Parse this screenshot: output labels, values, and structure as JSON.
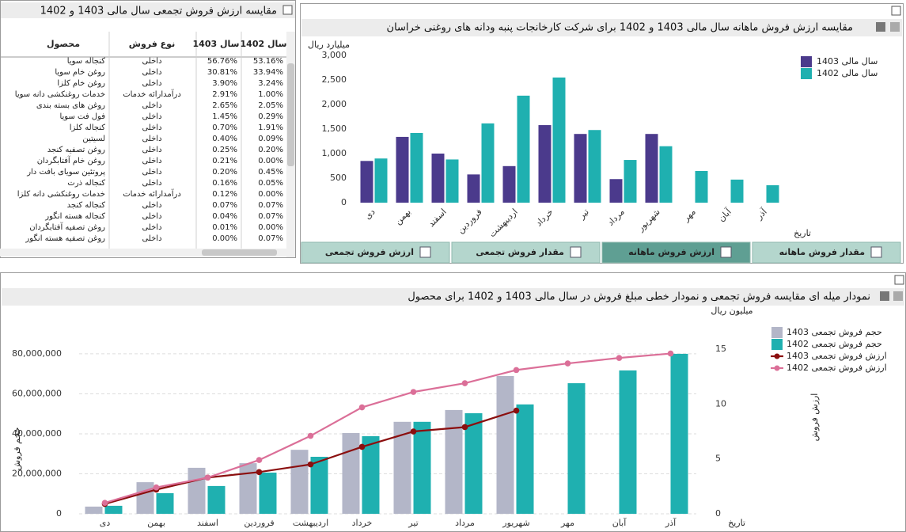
{
  "table": {
    "title": "مقایسه ارزش فروش تجمعی سال مالی 1403 و 1402",
    "columns": [
      "محصول",
      "نوع فروش",
      "سال 1403",
      "سال 1402"
    ],
    "rows": [
      [
        "کنجاله سویا",
        "داخلی",
        "56.76%",
        "53.16%"
      ],
      [
        "روغن خام سویا",
        "داخلی",
        "30.81%",
        "33.94%"
      ],
      [
        "روغن خام کلزا",
        "داخلی",
        "3.90%",
        "3.24%"
      ],
      [
        "خدمات روغنکشی دانه سویا",
        "درآمدارائه خدمات",
        "2.91%",
        "1.00%"
      ],
      [
        "روغن های بسته بندی",
        "داخلی",
        "2.65%",
        "2.05%"
      ],
      [
        "فول فت سویا",
        "داخلی",
        "1.45%",
        "0.29%"
      ],
      [
        "کنجاله کلزا",
        "داخلی",
        "0.70%",
        "1.91%"
      ],
      [
        "لسیتین",
        "داخلی",
        "0.40%",
        "0.09%"
      ],
      [
        "روغن تصفیه کنجد",
        "داخلی",
        "0.25%",
        "0.20%"
      ],
      [
        "روغن خام آفتابگردان",
        "داخلی",
        "0.21%",
        "0.00%"
      ],
      [
        "پروتئین سویای بافت دار",
        "داخلی",
        "0.20%",
        "0.45%"
      ],
      [
        "کنجاله ذرت",
        "داخلی",
        "0.16%",
        "0.05%"
      ],
      [
        "خدمات روغنکشی دانه کلزا",
        "درآمدارائه خدمات",
        "0.12%",
        "0.00%"
      ],
      [
        "کنجاله کنجد",
        "داخلی",
        "0.07%",
        "0.07%"
      ],
      [
        "کنجاله هسته انگور",
        "داخلی",
        "0.04%",
        "0.07%"
      ],
      [
        "روغن تصفیه آفتابگردان",
        "داخلی",
        "0.01%",
        "0.00%"
      ],
      [
        "روغن تصفیه هسته انگور",
        "داخلی",
        "0.00%",
        "0.07%"
      ]
    ]
  },
  "tabs": [
    "ارزش فروش تجمعی",
    "مقدار فروش تجمعی",
    "ارزش فروش ماهانه",
    "مقدار فروش ماهانه"
  ],
  "active_tab": 2,
  "chart_data": [
    {
      "type": "bar",
      "title": "مقایسه ارزش فروش ماهانه سال مالی 1403 و 1402 برای شرکت کارخانجات پنبه ودانه های روغنی خراسان",
      "ylabel": "میلیارد ریال",
      "xlabel": "تاریخ",
      "categories": [
        "دی",
        "بهمن",
        "اسفند",
        "فروردین",
        "اردیبهشت",
        "خرداد",
        "تیر",
        "مرداد",
        "شهریور",
        "مهر",
        "آبان",
        "آذر"
      ],
      "series": [
        {
          "name": "سال مالی 1403",
          "color": "#4b3a8c",
          "values": [
            850,
            1340,
            1000,
            575,
            745,
            1580,
            1400,
            480,
            1400,
            null,
            null,
            null
          ]
        },
        {
          "name": "سال مالی 1402",
          "color": "#1fb0b0",
          "values": [
            900,
            1420,
            880,
            1615,
            2180,
            2550,
            1480,
            870,
            1150,
            645,
            470,
            355
          ]
        }
      ],
      "ylim": [
        0,
        3000
      ],
      "yticks": [
        0,
        500,
        {
          "value": 1000,
          "label": "1,000"
        },
        {
          "value": 1500,
          "label": "1,500"
        },
        {
          "value": 2000,
          "label": "2,000"
        },
        {
          "value": 2500,
          "label": "2,500"
        },
        {
          "value": 3000,
          "label": "3,000"
        }
      ],
      "grid": false,
      "legend": "right"
    },
    {
      "type": "bar_line",
      "title": "نمودار میله ای مقایسه فروش تجمعی و نمودار خطی مبلغ فروش در سال مالی 1403 و 1402 برای محصول",
      "ylabel": "حجم فروش",
      "y2label": "ارزش فروش",
      "y2unit": "میلیون ریال",
      "xlabel": "تاریخ",
      "categories": [
        "دی",
        "بهمن",
        "اسفند",
        "فروردین",
        "اردیبهشت",
        "خرداد",
        "تیر",
        "مرداد",
        "شهریور",
        "مهر",
        "آبان",
        "آذر"
      ],
      "series": [
        {
          "name": "حجم فروش تجمعی 1403",
          "kind": "bar",
          "color": "#b3b6c8",
          "values": [
            3600000,
            15800000,
            23000000,
            25300000,
            32000000,
            40400000,
            46000000,
            51900000,
            68900000,
            null,
            null,
            null
          ]
        },
        {
          "name": "حجم فروش تجمعی 1402",
          "kind": "bar",
          "color": "#1fb0b0",
          "values": [
            4000000,
            10300000,
            13900000,
            20600000,
            28500000,
            38800000,
            46000000,
            50300000,
            54700000,
            65300000,
            71700000,
            80000000
          ]
        },
        {
          "name": "ارزش فروش تجمعی 1403",
          "kind": "line",
          "axis": "y2",
          "color": "#8b0f0f",
          "values": [
            0.9,
            2.2,
            3.3,
            3.8,
            4.5,
            6.1,
            7.5,
            7.9,
            9.4,
            null,
            null,
            null
          ]
        },
        {
          "name": "ارزش فروش تجمعی 1402",
          "kind": "line",
          "axis": "y2",
          "color": "#db6f98",
          "values": [
            1.0,
            2.4,
            3.3,
            4.9,
            7.1,
            9.7,
            11.1,
            11.9,
            13.1,
            13.7,
            14.2,
            14.6
          ]
        }
      ],
      "ylim": [
        0,
        96600000
      ],
      "yticks": [
        0,
        {
          "value": 20000000,
          "label": "20,000,000"
        },
        {
          "value": 40000000,
          "label": "40,000,000"
        },
        {
          "value": 60000000,
          "label": "60,000,000"
        },
        {
          "value": 80000000,
          "label": "80,000,000"
        }
      ],
      "y2lim": [
        0,
        17.6
      ],
      "y2ticks": [
        0,
        5,
        10,
        15
      ],
      "grid": true,
      "legend": "right"
    }
  ]
}
